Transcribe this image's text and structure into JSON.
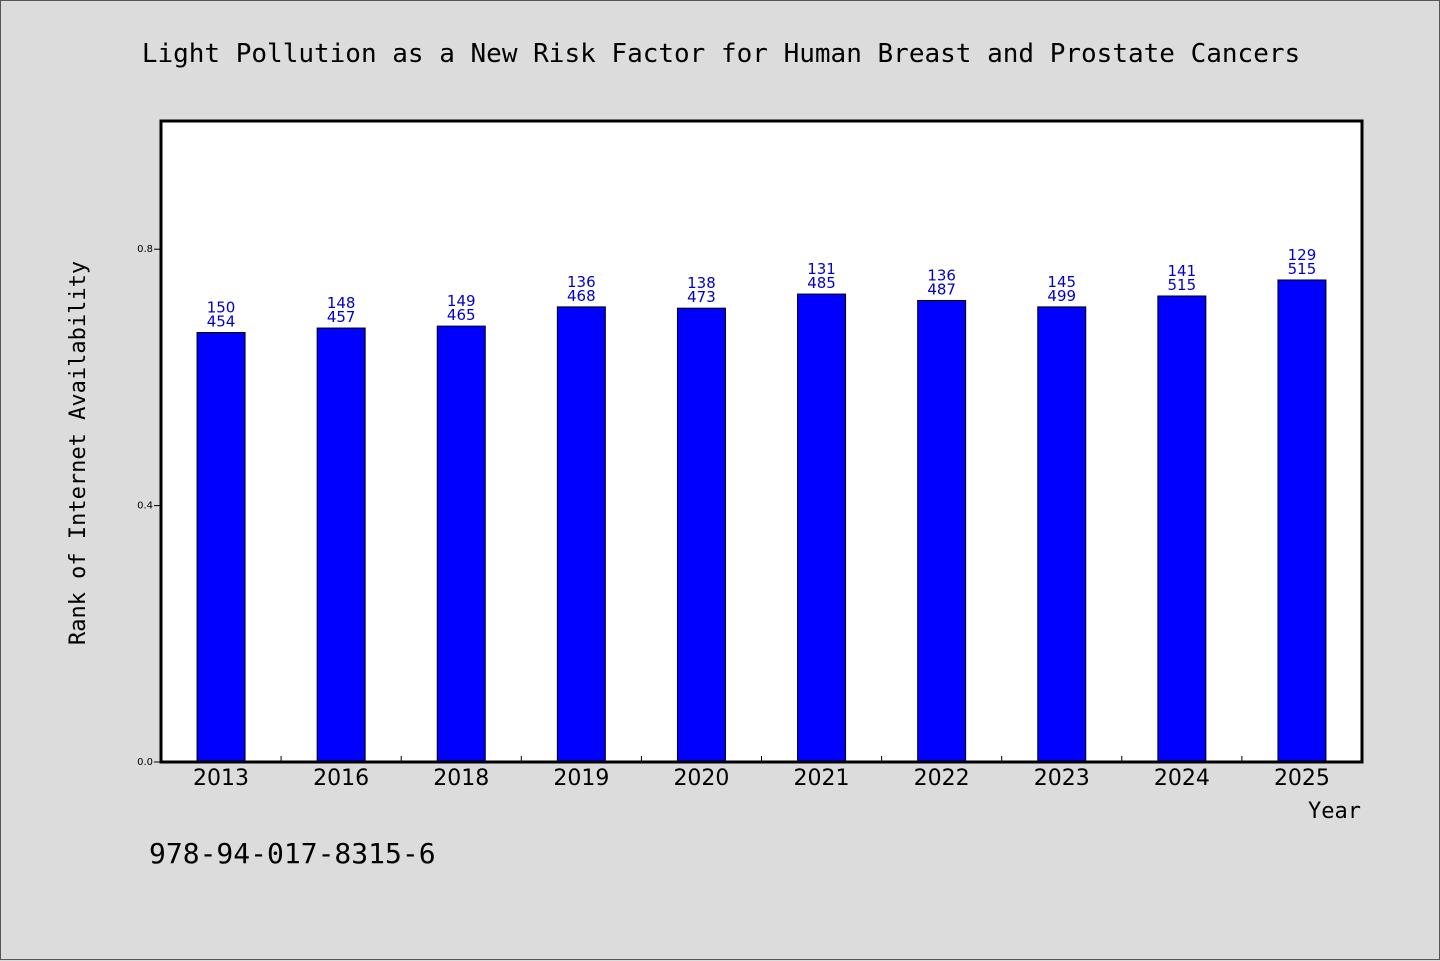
{
  "chart_data": {
    "type": "bar",
    "title": "Light Pollution as a New Risk Factor for Human Breast and Prostate Cancers",
    "xlabel": "Year",
    "ylabel": "Rank of Internet Availability",
    "categories": [
      "2013",
      "2016",
      "2018",
      "2019",
      "2020",
      "2021",
      "2022",
      "2023",
      "2024",
      "2025"
    ],
    "values": [
      0.67,
      0.677,
      0.68,
      0.71,
      0.708,
      0.73,
      0.72,
      0.71,
      0.727,
      0.752
    ],
    "label_line1": [
      "150",
      "148",
      "149",
      "136",
      "138",
      "131",
      "136",
      "145",
      "141",
      "129"
    ],
    "label_line2": [
      "454",
      "457",
      "465",
      "468",
      "473",
      "485",
      "487",
      "499",
      "515",
      "515"
    ],
    "ylim": [
      0.0,
      1.0
    ],
    "yticks": [
      0.0,
      0.4,
      0.8
    ],
    "ytick_labels": [
      "0.0",
      "0.4",
      "0.8"
    ],
    "grid": false,
    "bar_color": "#0000ff",
    "label_color": "#0000cc"
  },
  "footer_text": "978-94-017-8315-6"
}
